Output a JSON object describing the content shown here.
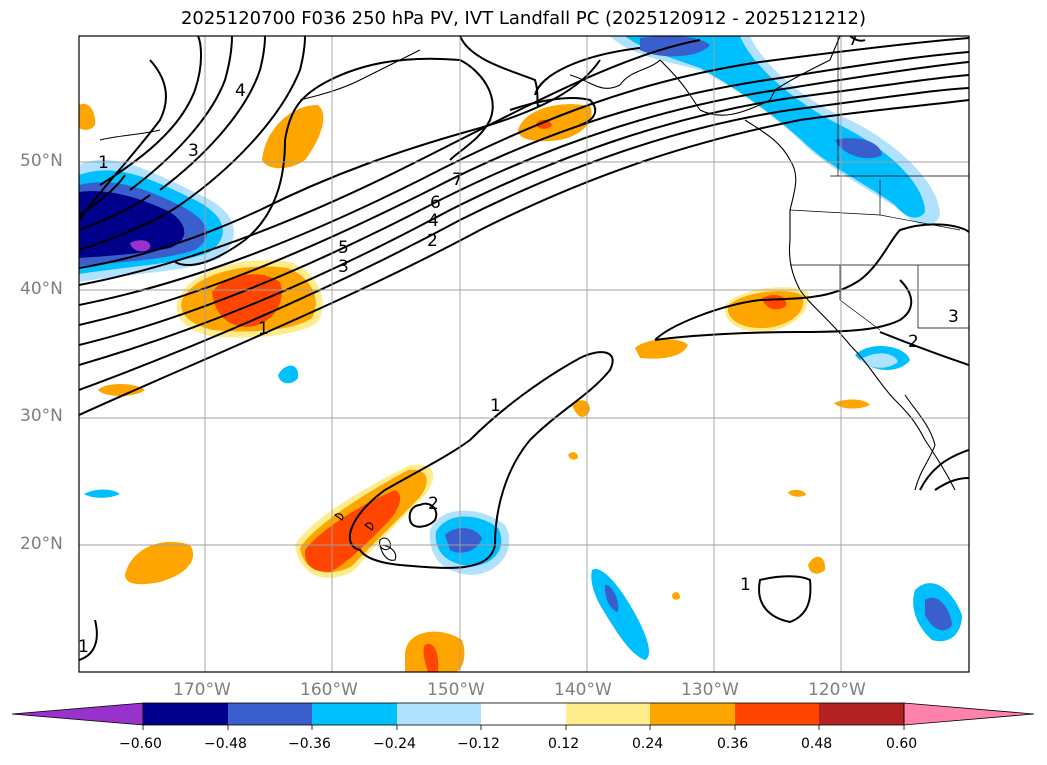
{
  "title": "2025120700 F036 250 hPa PV, IVT Landfall PC (2025120912 - 2025121212)",
  "lat_labels": [
    "50°N",
    "40°N",
    "30°N",
    "20°N"
  ],
  "lon_labels": [
    "170°W",
    "160°W",
    "150°W",
    "140°W",
    "130°W",
    "120°W"
  ],
  "colorbar": {
    "ticks": [
      "−0.60",
      "−0.48",
      "−0.36",
      "−0.24",
      "−0.12",
      "0.12",
      "0.24",
      "0.36",
      "0.48",
      "0.60"
    ],
    "colors": [
      "#9932cc",
      "#00008b",
      "#3a5fcd",
      "#00bfff",
      "#b0e2ff",
      "#ffffff",
      "#ffec8b",
      "#ffa500",
      "#ff4500",
      "#b22222",
      "#ff82ab"
    ]
  },
  "contour_labels": [
    "7",
    "6",
    "5",
    "4",
    "3",
    "2",
    "1",
    "1",
    "2",
    "1",
    "1",
    "2",
    "3",
    "4",
    "3",
    "1",
    "7"
  ],
  "shading_colors": {
    "neg_light": "#b0e2ff",
    "neg_mid": "#00bfff",
    "neg_strong": "#3a5fcd",
    "neg_max": "#00008b",
    "neg_ext": "#9932cc",
    "pos_light": "#ffec8b",
    "pos_mid": "#ffa500",
    "pos_strong": "#ff4500"
  }
}
